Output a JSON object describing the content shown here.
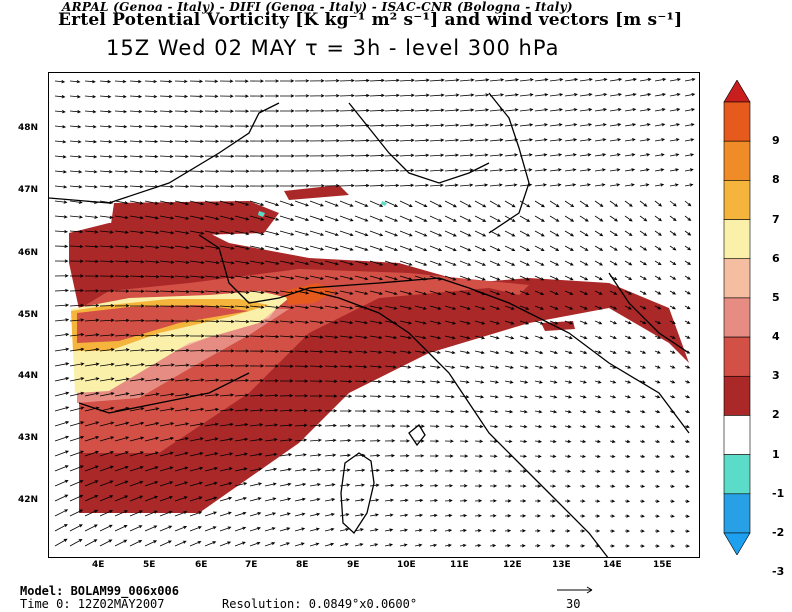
{
  "header": {
    "institutions": "ARPAL (Genoa - Italy) - DIFI (Genoa - Italy) - ISAC-CNR (Bologna - Italy)",
    "field": "Ertel Potential Vorticity [K kg⁻¹ m² s⁻¹] and wind vectors [m s⁻¹]",
    "time_line": "15Z Wed 02 MAY  τ = 3h  -  level 300 hPa"
  },
  "axes": {
    "latitudes": [
      "48N",
      "47N",
      "46N",
      "45N",
      "44N",
      "43N",
      "42N"
    ],
    "longitudes": [
      "4E",
      "5E",
      "6E",
      "7E",
      "8E",
      "9E",
      "10E",
      "11E",
      "12E",
      "13E",
      "14E",
      "15E"
    ]
  },
  "colorbar": {
    "labels": [
      "9",
      "8",
      "7",
      "6",
      "5",
      "4",
      "3",
      "2",
      "1",
      "-1",
      "-2",
      "-3"
    ],
    "colors": [
      "#c81e1e",
      "#e65a1e",
      "#f08c28",
      "#f5b43c",
      "#faf0aa",
      "#f5bea0",
      "#e68c82",
      "#d25046",
      "#aa2828",
      "#ffffff",
      "#5adcc8",
      "#28a0e6",
      "#1ea0f0"
    ]
  },
  "footer": {
    "model": "Model: BOLAM99_006x006",
    "time": "Time 0: 12Z02MAY2007",
    "resolution": "Resolution: 0.0849°x0.0600°",
    "ref_vector": "30"
  }
}
